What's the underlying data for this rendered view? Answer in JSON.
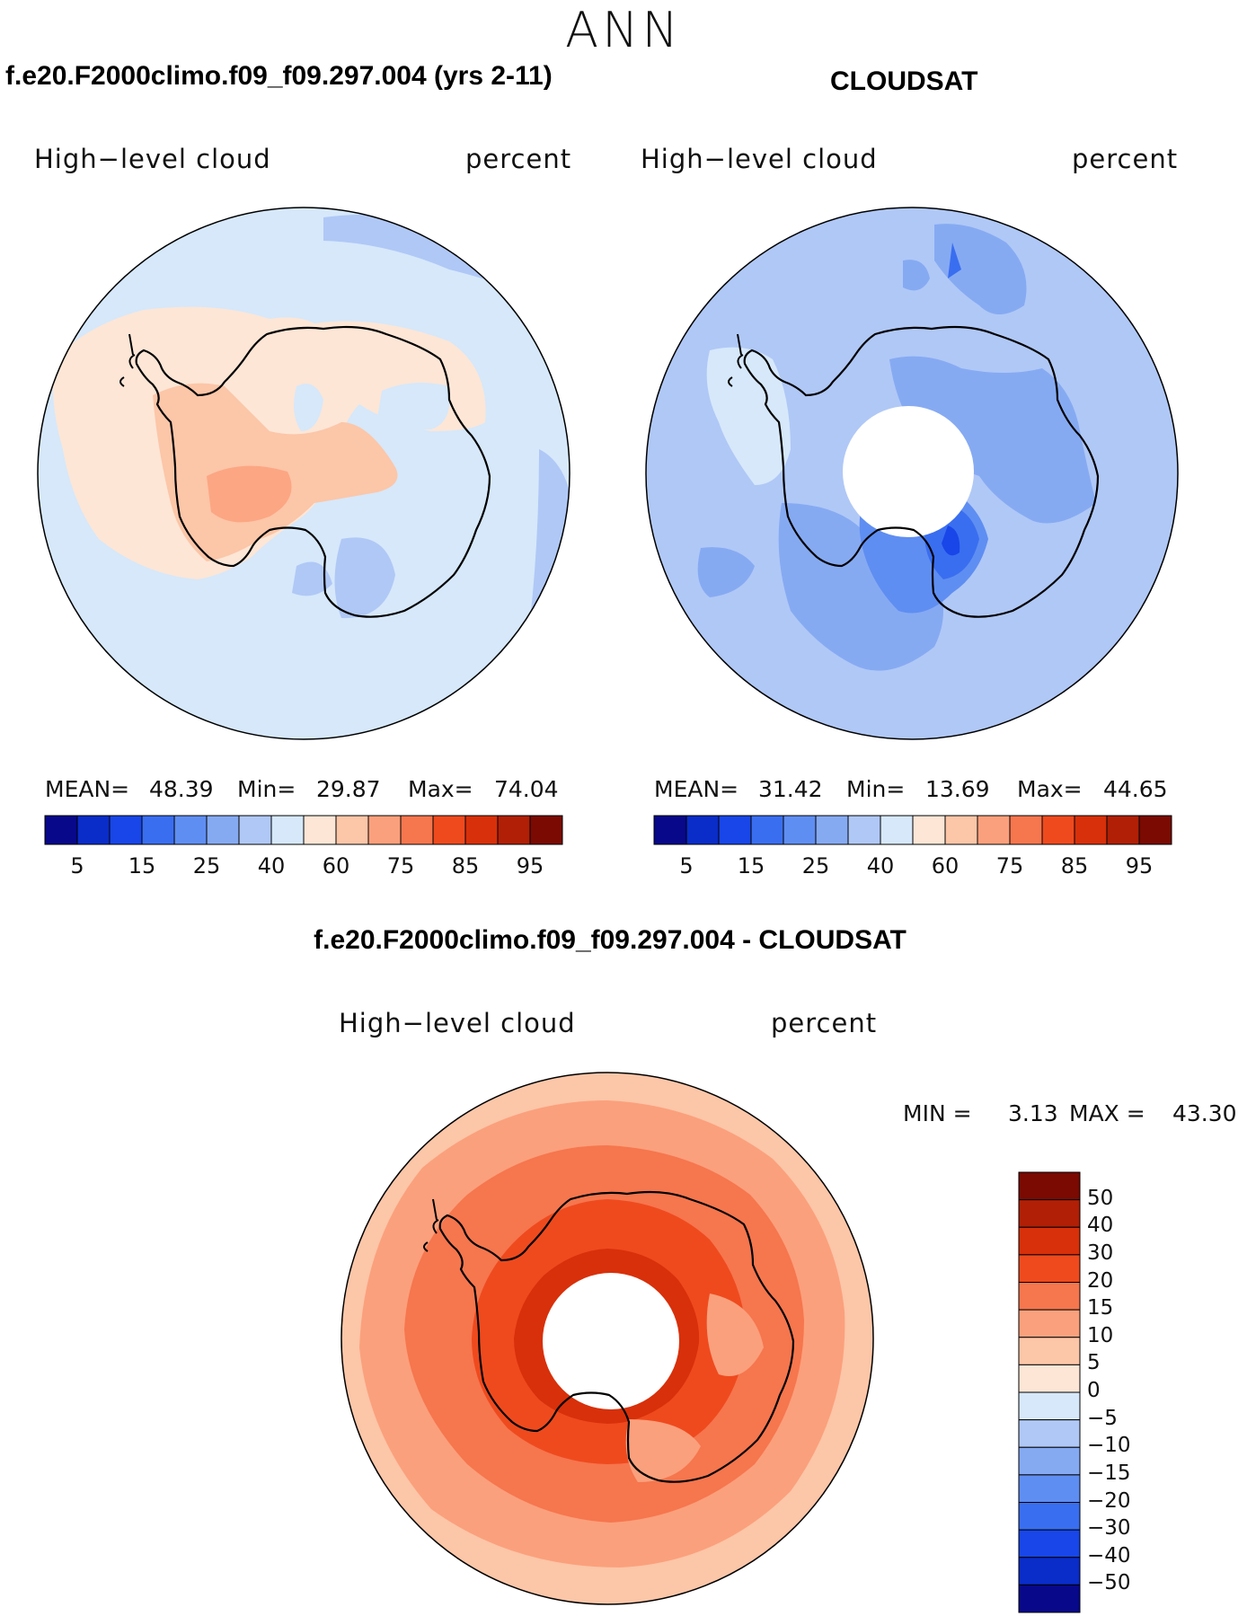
{
  "season": "ANN",
  "panels": [
    {
      "title": "f.e20.F2000climo.f09_f09.297.004 (yrs 2-11)",
      "variable": "High−level cloud",
      "units": "percent",
      "stats": {
        "mean_label": "MEAN=",
        "mean": "48.39",
        "min_label": "Min=",
        "min": "29.87",
        "max_label": "Max=",
        "max": "74.04"
      },
      "colorbar_labels": [
        "5",
        "15",
        "25",
        "40",
        "60",
        "75",
        "85",
        "95"
      ]
    },
    {
      "title": "CLOUDSAT",
      "variable": "High−level cloud",
      "units": "percent",
      "stats": {
        "mean_label": "MEAN=",
        "mean": "31.42",
        "min_label": "Min=",
        "min": "13.69",
        "max_label": "Max=",
        "max": "44.65"
      },
      "colorbar_labels": [
        "5",
        "15",
        "25",
        "40",
        "60",
        "75",
        "85",
        "95"
      ]
    }
  ],
  "diff_panel": {
    "title": "f.e20.F2000climo.f09_f09.297.004 - CLOUDSAT",
    "variable": "High−level cloud",
    "units": "percent",
    "stats": {
      "min_label": "MIN =",
      "min": "3.13",
      "max_label": "MAX =",
      "max": "43.30"
    },
    "colorbar_labels": [
      "50",
      "40",
      "30",
      "20",
      "15",
      "10",
      "5",
      "0",
      "−5",
      "−10",
      "−15",
      "−20",
      "−30",
      "−40",
      "−50"
    ]
  },
  "colors": {
    "abs_scale": [
      "#08088a",
      "#0a2cc8",
      "#1846e8",
      "#3a6ef0",
      "#5f8ef2",
      "#86aaf2",
      "#b0c8f6",
      "#d6e8fa",
      "#fde6d6",
      "#fcc6a8",
      "#fba07c",
      "#f6764e",
      "#ef4a1e",
      "#d8300a",
      "#b01f06",
      "#7a0a02"
    ],
    "diff_scale": [
      "#7a0a02",
      "#b01f06",
      "#d8300a",
      "#ef4a1e",
      "#f6764e",
      "#fba07c",
      "#fcc6a8",
      "#fde6d6",
      "#d6e8fa",
      "#b0c8f6",
      "#86aaf2",
      "#5f8ef2",
      "#3a6ef0",
      "#1846e8",
      "#0a2cc8",
      "#08088a"
    ]
  },
  "map": {
    "projection": "south-polar-stereographic",
    "region": "Antarctica",
    "coastline_color": "#000000",
    "missing_color": "#ffffff"
  }
}
